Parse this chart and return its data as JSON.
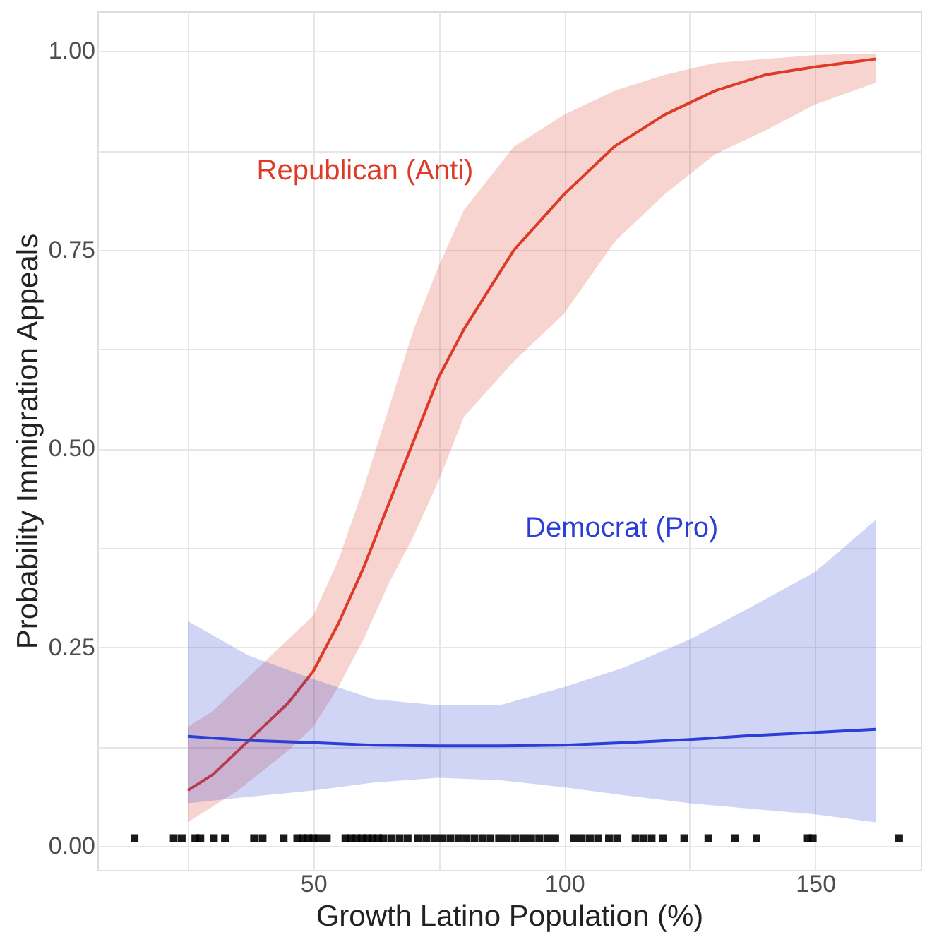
{
  "chart_data": {
    "type": "line",
    "xlabel": "Growth Latino Population (%)",
    "ylabel": "Probability Immigration Appeals",
    "xlim": [
      7,
      171
    ],
    "ylim": [
      -0.03,
      1.05
    ],
    "xticks": [
      {
        "value": 25,
        "label": null
      },
      50,
      {
        "value": 75,
        "label": null
      },
      100,
      {
        "value": 125,
        "label": null
      },
      150
    ],
    "yticks": [
      {
        "value": 0,
        "label": "0.00"
      },
      {
        "value": 0.125,
        "label": null
      },
      {
        "value": 0.25,
        "label": "0.25"
      },
      {
        "value": 0.375,
        "label": null
      },
      {
        "value": 0.5,
        "label": "0.50"
      },
      {
        "value": 0.625,
        "label": null
      },
      {
        "value": 0.75,
        "label": "0.75"
      },
      {
        "value": 0.875,
        "label": null
      },
      {
        "value": 1,
        "label": "1.00"
      }
    ],
    "grid": true,
    "line_style": "solid",
    "marker": "none",
    "series": [
      {
        "name": "Republican (Anti)",
        "color": "#dd3a27",
        "x": [
          25,
          30,
          35,
          40,
          45,
          50,
          55,
          60,
          65,
          70,
          75,
          80,
          90,
          100,
          110,
          120,
          130,
          140,
          150,
          162
        ],
        "values": [
          0.07,
          0.09,
          0.12,
          0.15,
          0.18,
          0.22,
          0.28,
          0.35,
          0.43,
          0.51,
          0.59,
          0.65,
          0.75,
          0.82,
          0.88,
          0.92,
          0.95,
          0.97,
          0.98,
          0.99
        ],
        "lower": [
          0.03,
          0.05,
          0.07,
          0.095,
          0.12,
          0.15,
          0.2,
          0.26,
          0.33,
          0.39,
          0.46,
          0.54,
          0.61,
          0.67,
          0.76,
          0.82,
          0.87,
          0.9,
          0.933,
          0.96
        ],
        "upper": [
          0.15,
          0.17,
          0.2,
          0.23,
          0.26,
          0.29,
          0.36,
          0.45,
          0.55,
          0.65,
          0.73,
          0.8,
          0.88,
          0.92,
          0.95,
          0.97,
          0.985,
          0.99,
          0.995,
          0.997
        ]
      },
      {
        "name": "Democrat (Pro)",
        "color": "#2b3fd6",
        "x": [
          25,
          37,
          50,
          62,
          75,
          87,
          100,
          112,
          125,
          137,
          150,
          162
        ],
        "values": [
          0.138,
          0.133,
          0.13,
          0.127,
          0.126,
          0.126,
          0.127,
          0.13,
          0.134,
          0.139,
          0.143,
          0.147
        ],
        "lower": [
          0.054,
          0.062,
          0.07,
          0.08,
          0.086,
          0.083,
          0.074,
          0.064,
          0.054,
          0.047,
          0.04,
          0.03
        ],
        "upper": [
          0.283,
          0.24,
          0.21,
          0.185,
          0.177,
          0.177,
          0.2,
          0.225,
          0.26,
          0.3,
          0.345,
          0.41
        ]
      },
      {
        "type": "scatter",
        "marker": "square",
        "color": "#000000",
        "x": [
          14.4,
          22.2,
          23.8,
          26.5,
          27.5,
          30.2,
          32.4,
          38.2,
          39.9,
          44.1,
          46.8,
          47.9,
          49.0,
          50.0,
          51.1,
          52.7,
          56.4,
          57.5,
          58.6,
          59.7,
          60.7,
          61.8,
          62.9,
          63.9,
          65.5,
          67.2,
          68.8,
          70.9,
          72.5,
          74.1,
          75.7,
          77.3,
          78.9,
          80.5,
          82.1,
          83.7,
          85.3,
          87.0,
          88.6,
          90.2,
          91.8,
          93.4,
          95.0,
          96.6,
          98.2,
          101.9,
          103.5,
          105.1,
          106.7,
          108.9,
          110.5,
          114.2,
          115.8,
          117.4,
          119.6,
          123.9,
          128.7,
          134.0,
          138.3,
          148.5,
          149.5,
          166.7
        ],
        "values": [
          0.01,
          0.01,
          0.01,
          0.01,
          0.01,
          0.01,
          0.01,
          0.01,
          0.01,
          0.01,
          0.01,
          0.01,
          0.01,
          0.01,
          0.01,
          0.01,
          0.01,
          0.01,
          0.01,
          0.01,
          0.01,
          0.01,
          0.01,
          0.01,
          0.01,
          0.01,
          0.01,
          0.01,
          0.01,
          0.01,
          0.01,
          0.01,
          0.01,
          0.01,
          0.01,
          0.01,
          0.01,
          0.01,
          0.01,
          0.01,
          0.01,
          0.01,
          0.01,
          0.01,
          0.01,
          0.01,
          0.01,
          0.01,
          0.01,
          0.01,
          0.01,
          0.01,
          0.01,
          0.01,
          0.01,
          0.01,
          0.01,
          0.01,
          0.01,
          0.01,
          0.01,
          0.01
        ]
      }
    ]
  }
}
